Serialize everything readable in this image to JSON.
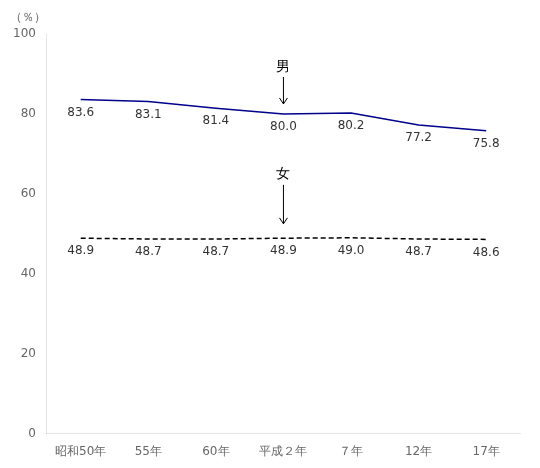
{
  "chart_data": {
    "type": "line",
    "ylabel": "（％）",
    "categories": [
      "昭和50年",
      "55年",
      "60年",
      "平成２年",
      "７年",
      "12年",
      "17年"
    ],
    "series": [
      {
        "name": "男",
        "color": "#00008B",
        "line_style": "solid",
        "values": [
          83.6,
          83.1,
          81.4,
          80.0,
          80.2,
          77.2,
          75.8
        ],
        "value_labels": [
          "83.6",
          "83.1",
          "81.4",
          "80.0",
          "80.2",
          "77.2",
          "75.8"
        ]
      },
      {
        "name": "女",
        "color": "#000000",
        "line_style": "dashed",
        "values": [
          48.9,
          48.7,
          48.7,
          48.9,
          49.0,
          48.7,
          48.6
        ],
        "value_labels": [
          "48.9",
          "48.7",
          "48.7",
          "48.9",
          "49.0",
          "48.7",
          "48.6"
        ]
      }
    ],
    "annotations": [
      {
        "text": "男",
        "x": "平成２年",
        "y": 90,
        "arrow_y": 82.5
      },
      {
        "text": "女",
        "x": "平成２年",
        "y": 63,
        "arrow_y": 52.5
      }
    ],
    "ylim": [
      0,
      100
    ],
    "yticks": [
      0,
      20,
      40,
      60,
      80,
      100
    ],
    "data_labels": true,
    "grid": false,
    "legend": false
  }
}
